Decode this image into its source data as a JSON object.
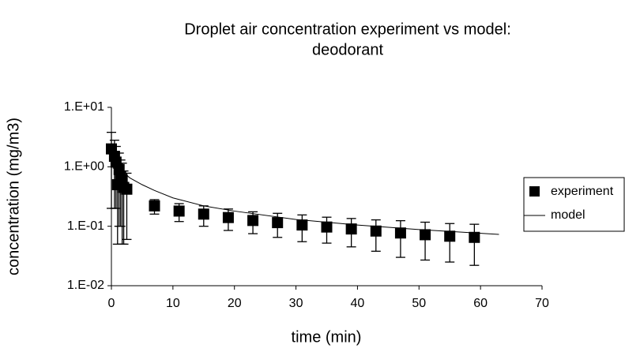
{
  "chart_data": {
    "type": "scatter-line",
    "title": [
      "Droplet air concentration experiment vs model:",
      "deodorant"
    ],
    "x_label": "time (min)",
    "y_label": "concentration (mg/m3)",
    "log_y": true,
    "xlim": [
      0,
      70
    ],
    "xticks": [
      0,
      10,
      20,
      30,
      40,
      50,
      60,
      70
    ],
    "ylim": [
      0.01,
      10
    ],
    "yticks": [
      {
        "value": 10,
        "label": "1.E+01"
      },
      {
        "value": 1,
        "label": "1.E+00"
      },
      {
        "value": 0.1,
        "label": "1.E-01"
      },
      {
        "value": 0.01,
        "label": "1.E-02"
      }
    ],
    "legend": "right",
    "series": [
      {
        "name": "experiment",
        "color": "#000000",
        "kind": "marker",
        "x": [
          0,
          0.5,
          0.75,
          1,
          1.25,
          1.5,
          1.75,
          2,
          2.5,
          7,
          11,
          15,
          19,
          23,
          27,
          31,
          35,
          39,
          43,
          47,
          51,
          55,
          59
        ],
        "values": [
          2,
          1.5,
          1.2,
          0.5,
          0.9,
          0.7,
          0.6,
          0.45,
          0.42,
          0.22,
          0.18,
          0.16,
          0.14,
          0.125,
          0.115,
          0.105,
          0.097,
          0.09,
          0.083,
          0.077,
          0.072,
          0.068,
          0.065
        ],
        "errors": [
          1.8,
          1.3,
          1.0,
          0.45,
          0.8,
          0.6,
          0.55,
          0.4,
          0.36,
          0.06,
          0.06,
          0.06,
          0.055,
          0.05,
          0.05,
          0.05,
          0.045,
          0.045,
          0.045,
          0.047,
          0.045,
          0.043,
          0.043
        ]
      },
      {
        "name": "model",
        "color": "#000000",
        "kind": "line",
        "x": [
          0.3,
          1,
          2,
          3,
          5,
          7,
          10,
          15,
          20,
          30,
          40,
          50,
          63
        ],
        "values": [
          1.3,
          1.0,
          0.8,
          0.65,
          0.5,
          0.4,
          0.3,
          0.22,
          0.18,
          0.13,
          0.105,
          0.088,
          0.073
        ]
      }
    ]
  }
}
